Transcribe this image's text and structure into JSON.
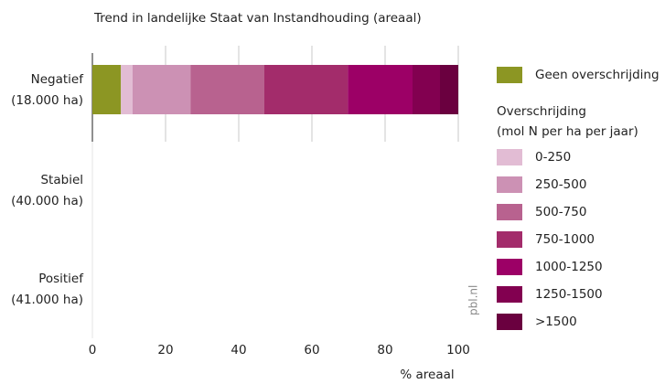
{
  "chart_data": {
    "type": "stacked_barh",
    "title": "Trend in landelijke Staat van Instandhouding (areaal)",
    "categories": [
      [
        "Negatief",
        "(18.000 ha)"
      ],
      [
        "Stabiel",
        "(40.000 ha)"
      ],
      [
        "Positief",
        "(41.000 ha)"
      ]
    ],
    "series": [
      {
        "name": "Geen overschrijding",
        "color": "#8c9623",
        "values": [
          7.8,
          null,
          null
        ]
      },
      {
        "name": "0-250",
        "color": "#e2bcd4",
        "values": [
          3.2,
          null,
          null
        ]
      },
      {
        "name": "250-500",
        "color": "#cc91b4",
        "values": [
          15.8,
          null,
          null
        ]
      },
      {
        "name": "500-750",
        "color": "#b8628f",
        "values": [
          20.2,
          null,
          null
        ]
      },
      {
        "name": "750-1000",
        "color": "#a32c6b",
        "values": [
          22.8,
          null,
          null
        ]
      },
      {
        "name": "1000-1250",
        "color": "#9c0066",
        "values": [
          17.7,
          null,
          null
        ]
      },
      {
        "name": "1250-1500",
        "color": "#820050",
        "values": [
          7.5,
          null,
          null
        ]
      },
      {
        "name": ">1500",
        "color": "#6a003f",
        "values": [
          5,
          null,
          null
        ]
      }
    ],
    "legend_title": [
      "Overschrijding",
      "(mol N per ha per jaar)"
    ],
    "xlabel": "% areaal",
    "xlim": [
      0,
      100
    ],
    "xticks": [
      0,
      20,
      40,
      60,
      80,
      100
    ],
    "grid": true,
    "annotation": "pbl.nl"
  }
}
